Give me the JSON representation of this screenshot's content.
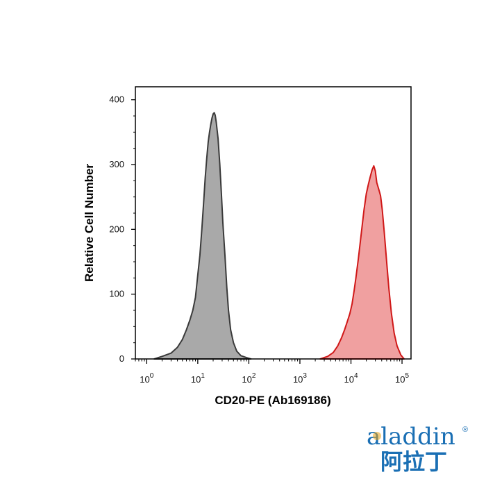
{
  "chart_data": {
    "type": "area",
    "title": "",
    "xlabel": "CD20-PE (Ab169186)",
    "ylabel": "Relative Cell Number",
    "x_scale": "log",
    "xlim": [
      0.6,
      150000
    ],
    "ylim": [
      0,
      420
    ],
    "x_ticks": [
      {
        "value": 1,
        "base": "10",
        "exp": "0"
      },
      {
        "value": 10,
        "base": "10",
        "exp": "1"
      },
      {
        "value": 100,
        "base": "10",
        "exp": "2"
      },
      {
        "value": 1000,
        "base": "10",
        "exp": "3"
      },
      {
        "value": 10000,
        "base": "10",
        "exp": "4"
      },
      {
        "value": 100000,
        "base": "10",
        "exp": "5"
      }
    ],
    "y_ticks": [
      0,
      100,
      200,
      300,
      400
    ],
    "grid": false,
    "series": [
      {
        "color_fill": "#a9a9a9",
        "color_line": "#3a3a3a",
        "points": [
          [
            1.4,
            0
          ],
          [
            2,
            4
          ],
          [
            3,
            9
          ],
          [
            4,
            18
          ],
          [
            5,
            30
          ],
          [
            6,
            45
          ],
          [
            7,
            60
          ],
          [
            8,
            75
          ],
          [
            9,
            95
          ],
          [
            10,
            130
          ],
          [
            11,
            160
          ],
          [
            12,
            200
          ],
          [
            13,
            240
          ],
          [
            14,
            280
          ],
          [
            15,
            310
          ],
          [
            16,
            335
          ],
          [
            17,
            350
          ],
          [
            18,
            362
          ],
          [
            19,
            372
          ],
          [
            20,
            378
          ],
          [
            21,
            380
          ],
          [
            22,
            376
          ],
          [
            23,
            365
          ],
          [
            25,
            340
          ],
          [
            27,
            300
          ],
          [
            29,
            255
          ],
          [
            31,
            210
          ],
          [
            34,
            160
          ],
          [
            37,
            110
          ],
          [
            40,
            75
          ],
          [
            44,
            45
          ],
          [
            50,
            25
          ],
          [
            58,
            12
          ],
          [
            70,
            5
          ],
          [
            90,
            2
          ],
          [
            110,
            0
          ]
        ]
      },
      {
        "color_fill": "#f0a0a0",
        "color_line": "#d01818",
        "points": [
          [
            2500,
            0
          ],
          [
            3500,
            4
          ],
          [
            4500,
            10
          ],
          [
            5500,
            20
          ],
          [
            6500,
            32
          ],
          [
            7500,
            45
          ],
          [
            8500,
            58
          ],
          [
            9500,
            70
          ],
          [
            10500,
            85
          ],
          [
            11500,
            105
          ],
          [
            12500,
            125
          ],
          [
            14000,
            155
          ],
          [
            16000,
            195
          ],
          [
            18000,
            230
          ],
          [
            20000,
            255
          ],
          [
            22000,
            270
          ],
          [
            24000,
            282
          ],
          [
            26000,
            292
          ],
          [
            28000,
            298
          ],
          [
            30000,
            290
          ],
          [
            32000,
            272
          ],
          [
            35000,
            262
          ],
          [
            38000,
            252
          ],
          [
            41000,
            230
          ],
          [
            45000,
            195
          ],
          [
            50000,
            150
          ],
          [
            55000,
            110
          ],
          [
            62000,
            70
          ],
          [
            70000,
            40
          ],
          [
            80000,
            20
          ],
          [
            95000,
            6
          ],
          [
            110000,
            0
          ]
        ]
      }
    ]
  },
  "logo": {
    "brand_text": "aladdin",
    "registered": "®",
    "brand_cn": "阿拉丁"
  }
}
